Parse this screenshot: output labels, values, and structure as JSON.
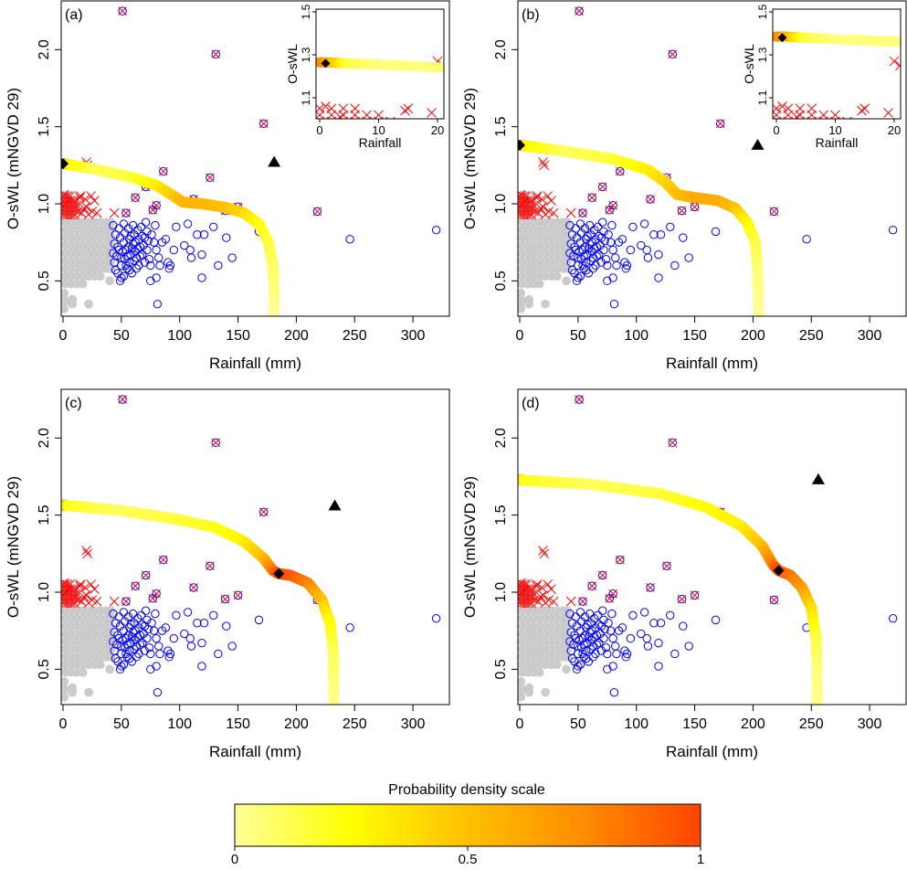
{
  "colorbar": {
    "title": "Probability density scale",
    "ticks": [
      "0",
      "0.5",
      "1"
    ],
    "colors": [
      "#ffff99",
      "#ffff00",
      "#ffc000",
      "#ff8c00",
      "#ff4500"
    ]
  },
  "chart_data": {
    "type": "scatter",
    "xlabel": "Rainfall (mm)",
    "ylabel": "O-sWL (mNGVD 29)",
    "xlim": [
      -1.6,
      331
    ],
    "ylim": [
      0.275,
      2.326
    ],
    "xticks": [
      "0",
      "50",
      "100",
      "150",
      "200",
      "250",
      "300"
    ],
    "yticks": [
      "0.5",
      "1.0",
      "1.5",
      "2.0"
    ],
    "inset": {
      "xlabel": "Rainfall",
      "ylabel": "O-sWL",
      "xlim": [
        -0.6,
        21.1
      ],
      "ylim": [
        1.0,
        1.51
      ],
      "xticks": [
        "0",
        "10",
        "20"
      ],
      "yticks": [
        "1.1",
        "1.3",
        "1.5"
      ]
    },
    "colors": {
      "gray": "#cccccc",
      "blue": "#0000ff",
      "red": "#ff0000"
    },
    "points_gray": [
      [
        2,
        0.88
      ],
      [
        7,
        0.88
      ],
      [
        12,
        0.88
      ],
      [
        17,
        0.88
      ],
      [
        22,
        0.88
      ],
      [
        27,
        0.88
      ],
      [
        32,
        0.88
      ],
      [
        37,
        0.88
      ],
      [
        41,
        0.88
      ],
      [
        2,
        0.83
      ],
      [
        7,
        0.83
      ],
      [
        12,
        0.83
      ],
      [
        17,
        0.83
      ],
      [
        22,
        0.83
      ],
      [
        27,
        0.83
      ],
      [
        32,
        0.83
      ],
      [
        37,
        0.83
      ],
      [
        41,
        0.83
      ],
      [
        2,
        0.78
      ],
      [
        7,
        0.78
      ],
      [
        12,
        0.78
      ],
      [
        17,
        0.78
      ],
      [
        22,
        0.78
      ],
      [
        27,
        0.78
      ],
      [
        32,
        0.78
      ],
      [
        37,
        0.78
      ],
      [
        41,
        0.78
      ],
      [
        2,
        0.73
      ],
      [
        7,
        0.73
      ],
      [
        12,
        0.73
      ],
      [
        17,
        0.73
      ],
      [
        22,
        0.73
      ],
      [
        27,
        0.73
      ],
      [
        32,
        0.73
      ],
      [
        37,
        0.73
      ],
      [
        41,
        0.73
      ],
      [
        2,
        0.68
      ],
      [
        7,
        0.68
      ],
      [
        12,
        0.68
      ],
      [
        17,
        0.68
      ],
      [
        22,
        0.68
      ],
      [
        27,
        0.68
      ],
      [
        32,
        0.68
      ],
      [
        37,
        0.68
      ],
      [
        41,
        0.68
      ],
      [
        2,
        0.63
      ],
      [
        7,
        0.63
      ],
      [
        12,
        0.63
      ],
      [
        17,
        0.63
      ],
      [
        22,
        0.63
      ],
      [
        27,
        0.63
      ],
      [
        32,
        0.63
      ],
      [
        37,
        0.63
      ],
      [
        41,
        0.63
      ],
      [
        2,
        0.58
      ],
      [
        7,
        0.58
      ],
      [
        12,
        0.58
      ],
      [
        17,
        0.58
      ],
      [
        22,
        0.58
      ],
      [
        27,
        0.58
      ],
      [
        32,
        0.58
      ],
      [
        37,
        0.58
      ],
      [
        41,
        0.58
      ],
      [
        2,
        0.53
      ],
      [
        7,
        0.53
      ],
      [
        12,
        0.53
      ],
      [
        17,
        0.53
      ],
      [
        22,
        0.53
      ],
      [
        27,
        0.53
      ],
      [
        32,
        0.53
      ],
      [
        2,
        0.48
      ],
      [
        7,
        0.48
      ],
      [
        12,
        0.48
      ],
      [
        17,
        0.48
      ],
      [
        1,
        0.42
      ],
      [
        2,
        0.37
      ],
      [
        1,
        0.32
      ],
      [
        8,
        0.38
      ],
      [
        8,
        0.35
      ],
      [
        22,
        0.35
      ],
      [
        40,
        0.5
      ]
    ],
    "points_red": [
      [
        0,
        0.93
      ],
      [
        2,
        0.93
      ],
      [
        4,
        0.93
      ],
      [
        6,
        0.93
      ],
      [
        8,
        0.93
      ],
      [
        10,
        0.93
      ],
      [
        0,
        0.96
      ],
      [
        2,
        0.96
      ],
      [
        4,
        0.96
      ],
      [
        6,
        0.96
      ],
      [
        8,
        0.96
      ],
      [
        10,
        0.96
      ],
      [
        0,
        0.99
      ],
      [
        2,
        0.99
      ],
      [
        4,
        0.99
      ],
      [
        6,
        0.99
      ],
      [
        8,
        0.99
      ],
      [
        10,
        0.99
      ],
      [
        0,
        1.02
      ],
      [
        2,
        1.02
      ],
      [
        4,
        1.02
      ],
      [
        6,
        1.02
      ],
      [
        8,
        1.02
      ],
      [
        10,
        1.02
      ],
      [
        0,
        1.05
      ],
      [
        2,
        1.05
      ],
      [
        4,
        1.05
      ],
      [
        6,
        1.05
      ],
      [
        13,
        0.95
      ],
      [
        16,
        0.94
      ],
      [
        18,
        0.97
      ],
      [
        22,
        0.93
      ],
      [
        25,
        0.95
      ],
      [
        15,
        1.05
      ],
      [
        24,
        1.05
      ],
      [
        27,
        1.02
      ],
      [
        20,
        0.98
      ],
      [
        29,
        0.94
      ],
      [
        44,
        0.94
      ],
      [
        12,
        0.99
      ],
      [
        20,
        1.27
      ],
      [
        21,
        1.25
      ],
      [
        1,
        1.06
      ],
      [
        3.5,
        1.01
      ],
      [
        14.5,
        1.04
      ],
      [
        19,
        1.03
      ]
    ],
    "points_blue": [
      [
        43,
        0.86
      ],
      [
        45,
        0.8
      ],
      [
        44,
        0.74
      ],
      [
        43,
        0.68
      ],
      [
        44,
        0.62
      ],
      [
        45,
        0.57
      ],
      [
        47,
        0.55
      ],
      [
        48,
        0.84
      ],
      [
        49,
        0.78
      ],
      [
        48,
        0.7
      ],
      [
        50,
        0.65
      ],
      [
        50,
        0.6
      ],
      [
        52,
        0.87
      ],
      [
        53,
        0.81
      ],
      [
        52,
        0.75
      ],
      [
        54,
        0.7
      ],
      [
        53,
        0.64
      ],
      [
        55,
        0.58
      ],
      [
        56,
        0.84
      ],
      [
        57,
        0.77
      ],
      [
        56,
        0.72
      ],
      [
        58,
        0.67
      ],
      [
        57,
        0.62
      ],
      [
        59,
        0.55
      ],
      [
        60,
        0.86
      ],
      [
        61,
        0.8
      ],
      [
        60,
        0.74
      ],
      [
        62,
        0.69
      ],
      [
        61,
        0.63
      ],
      [
        63,
        0.58
      ],
      [
        64,
        0.83
      ],
      [
        65,
        0.77
      ],
      [
        64,
        0.71
      ],
      [
        66,
        0.66
      ],
      [
        65,
        0.6
      ],
      [
        67,
        0.85
      ],
      [
        68,
        0.79
      ],
      [
        69,
        0.73
      ],
      [
        68,
        0.67
      ],
      [
        70,
        0.62
      ],
      [
        71,
        0.88
      ],
      [
        72,
        0.82
      ],
      [
        73,
        0.76
      ],
      [
        72,
        0.7
      ],
      [
        74,
        0.64
      ],
      [
        75,
        0.6
      ],
      [
        76,
        0.8
      ],
      [
        78,
        0.75
      ],
      [
        79,
        0.86
      ],
      [
        80,
        0.7
      ],
      [
        82,
        0.65
      ],
      [
        83,
        0.6
      ],
      [
        85,
        0.75
      ],
      [
        88,
        0.77
      ],
      [
        90,
        0.62
      ],
      [
        91,
        0.58
      ],
      [
        92,
        0.6
      ],
      [
        47,
        0.72
      ],
      [
        51,
        0.69
      ],
      [
        55,
        0.66
      ],
      [
        58,
        0.79
      ],
      [
        62,
        0.75
      ],
      [
        66,
        0.72
      ],
      [
        46,
        0.66
      ],
      [
        54,
        0.6
      ],
      [
        59,
        0.71
      ],
      [
        63,
        0.65
      ],
      [
        70,
        0.78
      ],
      [
        52,
        0.53
      ],
      [
        57,
        0.57
      ],
      [
        49,
        0.5
      ],
      [
        50,
        0.52
      ],
      [
        75,
        0.5
      ],
      [
        80,
        0.52
      ],
      [
        81,
        0.35
      ],
      [
        95,
        0.7
      ],
      [
        97,
        0.85
      ],
      [
        104,
        0.73
      ],
      [
        107,
        0.87
      ],
      [
        109,
        0.7
      ],
      [
        110,
        0.65
      ],
      [
        115,
        0.8
      ],
      [
        119,
        0.67
      ],
      [
        119,
        0.52
      ],
      [
        121,
        0.8
      ],
      [
        129,
        0.85
      ],
      [
        133,
        0.6
      ],
      [
        140,
        0.78
      ],
      [
        145,
        0.65
      ],
      [
        168,
        0.82
      ],
      [
        246,
        0.77
      ],
      [
        320,
        0.83
      ]
    ],
    "points_both": [
      [
        51,
        2.25
      ],
      [
        131,
        1.97
      ],
      [
        172,
        1.52
      ],
      [
        86,
        1.21
      ],
      [
        126,
        1.17
      ],
      [
        71,
        1.11
      ],
      [
        62,
        1.04
      ],
      [
        112,
        1.03
      ],
      [
        80,
        0.99
      ],
      [
        77,
        0.96
      ],
      [
        54,
        0.94
      ],
      [
        139,
        0.955
      ],
      [
        150,
        0.98
      ],
      [
        218,
        0.95
      ]
    ],
    "panels": [
      {
        "label": "(a)",
        "has_inset": true,
        "curve": [
          [
            0,
            1.26,
            0.8
          ],
          [
            5,
            1.255,
            0.3
          ],
          [
            30,
            1.22,
            0.1
          ],
          [
            60,
            1.17,
            0.15
          ],
          [
            80,
            1.12,
            0.3
          ],
          [
            95,
            1.05,
            0.45
          ],
          [
            103,
            1.01,
            0.55
          ],
          [
            120,
            1.0,
            0.55
          ],
          [
            140,
            0.975,
            0.5
          ],
          [
            155,
            0.94,
            0.4
          ],
          [
            168,
            0.87,
            0.25
          ],
          [
            176,
            0.75,
            0.15
          ],
          [
            180,
            0.6,
            0.1
          ],
          [
            181,
            0.45,
            0.05
          ],
          [
            181,
            0.27,
            0.0
          ]
        ],
        "inset_curve": [
          [
            0,
            1.265,
            0.8
          ],
          [
            1.5,
            1.265,
            0.6
          ],
          [
            5,
            1.26,
            0.15
          ],
          [
            10,
            1.255,
            0.05
          ],
          [
            21.5,
            1.24,
            0.05
          ]
        ],
        "diamond": [
          0,
          1.26
        ],
        "inset_diamond": [
          1,
          1.26
        ],
        "triangle": [
          181,
          1.27
        ]
      },
      {
        "label": "(b)",
        "has_inset": true,
        "curve": [
          [
            0,
            1.38,
            0.8
          ],
          [
            5,
            1.375,
            0.3
          ],
          [
            40,
            1.34,
            0.1
          ],
          [
            80,
            1.29,
            0.15
          ],
          [
            110,
            1.22,
            0.3
          ],
          [
            125,
            1.14,
            0.4
          ],
          [
            135,
            1.06,
            0.5
          ],
          [
            150,
            1.04,
            0.6
          ],
          [
            170,
            1.02,
            0.6
          ],
          [
            185,
            0.97,
            0.5
          ],
          [
            195,
            0.88,
            0.3
          ],
          [
            202,
            0.75,
            0.15
          ],
          [
            204,
            0.55,
            0.05
          ],
          [
            205,
            0.27,
            0
          ]
        ],
        "inset_curve": [
          [
            0,
            1.385,
            0.8
          ],
          [
            1.5,
            1.385,
            0.6
          ],
          [
            5,
            1.38,
            0.15
          ],
          [
            10,
            1.372,
            0.05
          ],
          [
            21.5,
            1.36,
            0.05
          ]
        ],
        "diamond": [
          0,
          1.38
        ],
        "inset_diamond": [
          1,
          1.38
        ],
        "triangle": [
          204,
          1.38
        ]
      },
      {
        "label": "(c)",
        "has_inset": false,
        "curve": [
          [
            0,
            1.565,
            0.7
          ],
          [
            5,
            1.56,
            0.2
          ],
          [
            50,
            1.53,
            0.1
          ],
          [
            100,
            1.47,
            0.15
          ],
          [
            130,
            1.42,
            0.2
          ],
          [
            155,
            1.33,
            0.3
          ],
          [
            172,
            1.22,
            0.5
          ],
          [
            180,
            1.14,
            0.8
          ],
          [
            185,
            1.12,
            1
          ],
          [
            195,
            1.11,
            0.95
          ],
          [
            210,
            1.06,
            0.8
          ],
          [
            222,
            0.95,
            0.5
          ],
          [
            229,
            0.8,
            0.25
          ],
          [
            232,
            0.6,
            0.1
          ],
          [
            232,
            0.27,
            0.02
          ]
        ],
        "diamond": [
          185,
          1.12
        ],
        "triangle": [
          233,
          1.56
        ]
      },
      {
        "label": "(d)",
        "has_inset": false,
        "curve": [
          [
            0,
            1.73,
            0.5
          ],
          [
            5,
            1.725,
            0.2
          ],
          [
            60,
            1.7,
            0.1
          ],
          [
            120,
            1.64,
            0.15
          ],
          [
            160,
            1.55,
            0.25
          ],
          [
            190,
            1.43,
            0.3
          ],
          [
            208,
            1.3,
            0.5
          ],
          [
            217,
            1.18,
            0.8
          ],
          [
            222,
            1.14,
            1
          ],
          [
            232,
            1.11,
            0.85
          ],
          [
            242,
            1.03,
            0.7
          ],
          [
            250,
            0.9,
            0.4
          ],
          [
            254,
            0.7,
            0.15
          ],
          [
            255,
            0.5,
            0.05
          ],
          [
            255,
            0.27,
            0.02
          ]
        ],
        "diamond": [
          222,
          1.14
        ],
        "triangle": [
          256,
          1.73
        ]
      }
    ]
  }
}
